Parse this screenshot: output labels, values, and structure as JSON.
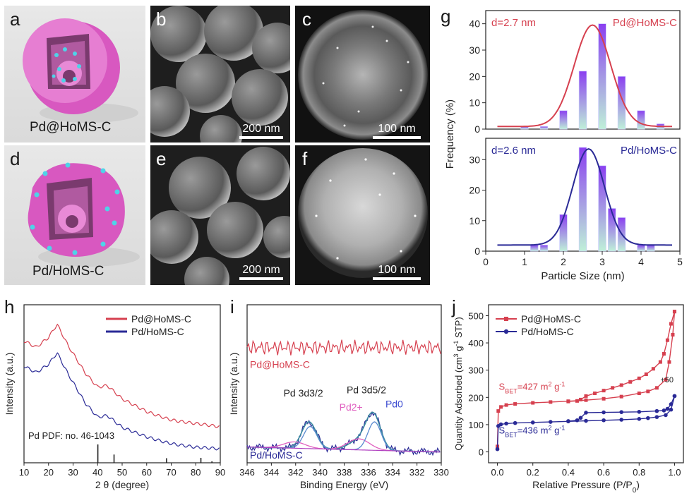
{
  "panels": {
    "a": {
      "letter": "a",
      "caption": "Pd@HoMS-C"
    },
    "b": {
      "letter": "b",
      "scale": "200 nm"
    },
    "c": {
      "letter": "c",
      "scale": "100 nm"
    },
    "d": {
      "letter": "d",
      "caption": "Pd/HoMS-C"
    },
    "e": {
      "letter": "e",
      "scale": "200 nm"
    },
    "f": {
      "letter": "f",
      "scale": "100 nm"
    },
    "g": {
      "letter": "g"
    },
    "h": {
      "letter": "h"
    },
    "i": {
      "letter": "i"
    },
    "j": {
      "letter": "j"
    }
  },
  "colors": {
    "red": "#d6404f",
    "blue": "#2a2a96",
    "purple_bar": "#8a3ff0",
    "mint_bar": "#bff0d8",
    "pink": "#e060c0",
    "xps_fit": "#3a8aa0"
  },
  "chart_data": [
    {
      "id": "g-top",
      "type": "bar",
      "title": "Pd@HoMS-C",
      "annotation": "d=2.7 nm",
      "x": [
        1.0,
        1.25,
        1.5,
        1.75,
        2.0,
        2.25,
        2.5,
        2.75,
        3.0,
        3.25,
        3.5,
        3.75,
        4.0,
        4.25,
        4.5,
        4.75
      ],
      "bars": [
        {
          "x": 1.0,
          "y": 1
        },
        {
          "x": 1.5,
          "y": 1
        },
        {
          "x": 2.0,
          "y": 7
        },
        {
          "x": 2.5,
          "y": 22
        },
        {
          "x": 3.0,
          "y": 40
        },
        {
          "x": 3.5,
          "y": 20
        },
        {
          "x": 4.0,
          "y": 7
        },
        {
          "x": 4.5,
          "y": 2
        }
      ],
      "fit": {
        "center": 2.75,
        "sigma": 0.47,
        "amplitude": 38.5,
        "baseline": 1
      },
      "ylim": [
        0,
        45
      ],
      "yticks": [
        0,
        10,
        20,
        30,
        40
      ]
    },
    {
      "id": "g-bottom",
      "type": "bar",
      "title": "Pd/HoMS-C",
      "annotation": "d=2.6 nm",
      "bars": [
        {
          "x": 1.25,
          "y": 2
        },
        {
          "x": 1.5,
          "y": 2
        },
        {
          "x": 2.0,
          "y": 12
        },
        {
          "x": 2.5,
          "y": 34
        },
        {
          "x": 3.0,
          "y": 28
        },
        {
          "x": 3.25,
          "y": 14
        },
        {
          "x": 3.5,
          "y": 11
        },
        {
          "x": 4.0,
          "y": 2
        },
        {
          "x": 4.25,
          "y": 2
        }
      ],
      "fit": {
        "center": 2.65,
        "sigma": 0.41,
        "amplitude": 31.5,
        "baseline": 2
      },
      "ylim": [
        0,
        37
      ],
      "yticks": [
        0,
        10,
        20,
        30
      ],
      "xlim": [
        0,
        5
      ],
      "xticks": [
        0,
        1,
        2,
        3,
        4,
        5
      ],
      "xlabel": "Particle Size (nm)",
      "ylabel": "Frequency (%)"
    },
    {
      "id": "h",
      "type": "line",
      "xlabel": "2 θ (degree)",
      "ylabel": "Intensity (a.u.)",
      "xlim": [
        10,
        90
      ],
      "xticks": [
        10,
        20,
        30,
        40,
        50,
        60,
        70,
        80,
        90
      ],
      "series": [
        {
          "name": "Pd@HoMS-C",
          "color": "#d6404f",
          "points": [
            [
              10,
              0.78
            ],
            [
              15,
              0.74
            ],
            [
              20,
              0.8
            ],
            [
              23.5,
              0.88
            ],
            [
              28,
              0.74
            ],
            [
              35,
              0.56
            ],
            [
              40,
              0.47
            ],
            [
              44,
              0.48
            ],
            [
              50,
              0.4
            ],
            [
              60,
              0.33
            ],
            [
              70,
              0.28
            ],
            [
              80,
              0.25
            ],
            [
              90,
              0.22
            ]
          ]
        },
        {
          "name": "Pd/HoMS-C",
          "color": "#2a2a96",
          "points": [
            [
              10,
              0.62
            ],
            [
              15,
              0.58
            ],
            [
              20,
              0.63
            ],
            [
              23.5,
              0.7
            ],
            [
              28,
              0.56
            ],
            [
              35,
              0.37
            ],
            [
              40,
              0.28
            ],
            [
              44,
              0.29
            ],
            [
              50,
              0.22
            ],
            [
              60,
              0.17
            ],
            [
              70,
              0.13
            ],
            [
              80,
              0.1
            ],
            [
              90,
              0.08
            ]
          ]
        }
      ],
      "reference": {
        "label": "Pd PDF: no. 46-1043",
        "peaks": [
          [
            40.1,
            1.0
          ],
          [
            46.7,
            0.45
          ],
          [
            68.1,
            0.25
          ],
          [
            82.1,
            0.27
          ],
          [
            86.6,
            0.08
          ]
        ]
      }
    },
    {
      "id": "i",
      "type": "line",
      "xlabel": "Binding Energy (eV)",
      "ylabel": "Intensity (a.u.)",
      "xlim": [
        346,
        330
      ],
      "xticks": [
        346,
        344,
        342,
        340,
        338,
        336,
        334,
        332,
        330
      ],
      "series": [
        {
          "name": "Pd@HoMS-C",
          "color": "#d6404f",
          "level": 0.73
        },
        {
          "name": "Pd/HoMS-C",
          "color": "#2a2a96",
          "level": 0.1
        }
      ],
      "peaks": [
        {
          "label": "Pd 3d3/2",
          "center": 340.9
        },
        {
          "label": "Pd 3d5/2",
          "center": 335.6
        },
        {
          "label": "Pd2+",
          "center": 336.8
        },
        {
          "label": "Pd0",
          "center": 335.5
        }
      ]
    },
    {
      "id": "j",
      "type": "line",
      "xlabel": "Relative Pressure (P/P0)",
      "ylabel": "Quantity Adsorbed (cm3 g-1 STP)",
      "xlim": [
        -0.05,
        1.05
      ],
      "ylim": [
        -40,
        540
      ],
      "xticks": [
        0.0,
        0.2,
        0.4,
        0.6,
        0.8,
        1.0
      ],
      "yticks": [
        0,
        100,
        200,
        300,
        400,
        500
      ],
      "series": [
        {
          "name": "Pd@HoMS-C",
          "color": "#d6404f",
          "offset": "+50",
          "bet": "427",
          "adsorption": [
            [
              0.0,
              20
            ],
            [
              0.005,
              150
            ],
            [
              0.02,
              165
            ],
            [
              0.05,
              172
            ],
            [
              0.1,
              176
            ],
            [
              0.2,
              180
            ],
            [
              0.3,
              183
            ],
            [
              0.4,
              186
            ],
            [
              0.5,
              190
            ],
            [
              0.6,
              195
            ],
            [
              0.7,
              203
            ],
            [
              0.8,
              215
            ],
            [
              0.85,
              222
            ],
            [
              0.9,
              235
            ],
            [
              0.95,
              265
            ],
            [
              0.97,
              330
            ],
            [
              0.99,
              430
            ],
            [
              1.0,
              515
            ]
          ],
          "desorption": [
            [
              1.0,
              515
            ],
            [
              0.98,
              470
            ],
            [
              0.96,
              410
            ],
            [
              0.94,
              360
            ],
            [
              0.92,
              330
            ],
            [
              0.88,
              305
            ],
            [
              0.84,
              285
            ],
            [
              0.8,
              270
            ],
            [
              0.75,
              257
            ],
            [
              0.7,
              245
            ],
            [
              0.65,
              235
            ],
            [
              0.6,
              225
            ],
            [
              0.55,
              215
            ],
            [
              0.5,
              205
            ],
            [
              0.47,
              192
            ],
            [
              0.45,
              187
            ],
            [
              0.4,
              185
            ]
          ]
        },
        {
          "name": "Pd/HoMS-C",
          "color": "#2a2a96",
          "bet": "436",
          "adsorption": [
            [
              0.0,
              10
            ],
            [
              0.005,
              95
            ],
            [
              0.02,
              101
            ],
            [
              0.05,
              104
            ],
            [
              0.1,
              106
            ],
            [
              0.2,
              108
            ],
            [
              0.3,
              110
            ],
            [
              0.4,
              112
            ],
            [
              0.5,
              114
            ],
            [
              0.6,
              116
            ],
            [
              0.7,
              118
            ],
            [
              0.8,
              121
            ],
            [
              0.85,
              124
            ],
            [
              0.9,
              128
            ],
            [
              0.95,
              135
            ],
            [
              0.98,
              155
            ],
            [
              1.0,
              205
            ]
          ],
          "desorption": [
            [
              1.0,
              205
            ],
            [
              0.98,
              175
            ],
            [
              0.96,
              158
            ],
            [
              0.94,
              152
            ],
            [
              0.9,
              150
            ],
            [
              0.8,
              147
            ],
            [
              0.7,
              146
            ],
            [
              0.6,
              145
            ],
            [
              0.5,
              144
            ],
            [
              0.47,
              125
            ],
            [
              0.45,
              116
            ],
            [
              0.4,
              113
            ]
          ]
        }
      ]
    }
  ]
}
